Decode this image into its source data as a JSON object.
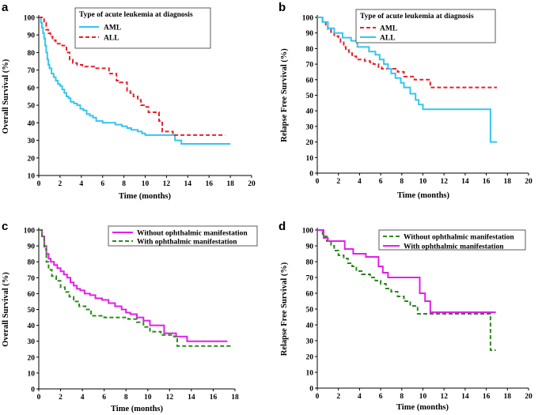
{
  "chart_data": [
    {
      "panel": "a",
      "type": "line",
      "xlabel": "Time (months)",
      "ylabel": "Overall Survival (%)",
      "xlim": [
        0,
        20
      ],
      "ylim": [
        10,
        100
      ],
      "xticks": [
        "0",
        "2",
        "4",
        "6",
        "8",
        "10",
        "12",
        "14",
        "16",
        "18",
        "20"
      ],
      "yticks": [
        "10",
        "20",
        "30",
        "40",
        "50",
        "60",
        "70",
        "80",
        "90",
        "100"
      ],
      "legend": {
        "title": "Type of acute leukemia at diagnosis",
        "position": "top-left"
      },
      "series": [
        {
          "name": "AML",
          "color": "#33c6ef",
          "dash": "solid",
          "x": [
            0,
            0.2,
            0.3,
            0.4,
            0.5,
            0.6,
            0.7,
            0.8,
            0.9,
            1.0,
            1.2,
            1.4,
            1.6,
            1.8,
            2.0,
            2.2,
            2.4,
            2.6,
            2.8,
            3.0,
            3.3,
            3.6,
            3.9,
            4.2,
            4.5,
            4.8,
            5.1,
            5.4,
            6.0,
            6.5,
            7.2,
            7.8,
            8.3,
            8.7,
            9.3,
            9.7,
            10.0,
            11.0,
            12.2,
            12.8,
            13.4,
            14.0,
            18.0
          ],
          "y": [
            100,
            97,
            94,
            91,
            88,
            84,
            80,
            76,
            73,
            71,
            68,
            66,
            64,
            62,
            61,
            59,
            57,
            55,
            54,
            52,
            51,
            50,
            48,
            47,
            45,
            44,
            43,
            41,
            40,
            40,
            39,
            38,
            37,
            36,
            35,
            34,
            33,
            33,
            33,
            30,
            28,
            28,
            28
          ]
        },
        {
          "name": "ALL",
          "color": "#e8222a",
          "dash": "dashed",
          "x": [
            0,
            0.5,
            0.7,
            0.9,
            1.1,
            1.3,
            1.6,
            2.2,
            2.6,
            2.9,
            3.2,
            3.6,
            4.1,
            4.6,
            5.2,
            5.6,
            6.3,
            6.6,
            7.3,
            7.6,
            8.3,
            8.6,
            8.9,
            9.3,
            9.6,
            10.0,
            10.3,
            10.8,
            11.3,
            11.6,
            12.6,
            17.5
          ],
          "y": [
            100,
            97,
            93,
            91,
            89,
            87,
            85,
            84,
            80,
            76,
            74,
            73,
            72,
            72,
            71,
            71,
            71,
            68,
            64,
            63,
            58,
            57,
            55,
            53,
            50,
            49,
            46,
            46,
            41,
            35,
            33,
            33
          ]
        }
      ]
    },
    {
      "panel": "b",
      "type": "line",
      "xlabel": "Time (months)",
      "ylabel": "Relapse Free Survival (%)",
      "xlim": [
        0,
        20
      ],
      "ylim": [
        0,
        100
      ],
      "xticks": [
        "0",
        "2",
        "4",
        "6",
        "8",
        "10",
        "12",
        "14",
        "16",
        "18",
        "20"
      ],
      "yticks": [
        "0",
        "10",
        "20",
        "30",
        "40",
        "50",
        "60",
        "70",
        "80",
        "90",
        "100"
      ],
      "legend": {
        "title": "Type of acute leukemia at diagnosis",
        "position": "top-right"
      },
      "series": [
        {
          "name": "AML",
          "color": "#e8222a",
          "dash": "dashed",
          "x": [
            0,
            0.5,
            0.8,
            1.0,
            1.3,
            1.6,
            2.0,
            2.2,
            2.5,
            2.7,
            3.0,
            3.3,
            3.7,
            4.5,
            5.0,
            5.3,
            5.8,
            6.1,
            6.8,
            7.6,
            8.2,
            9.2,
            10.0,
            10.7,
            17.0
          ],
          "y": [
            100,
            97,
            94,
            92,
            90,
            88,
            86,
            84,
            81,
            79,
            77,
            75,
            73,
            72,
            71,
            70,
            68,
            67,
            67,
            65,
            62,
            60,
            60,
            55,
            55
          ]
        },
        {
          "name": "ALL",
          "color": "#33c6ef",
          "dash": "solid",
          "x": [
            0,
            0.5,
            1.0,
            1.6,
            2.4,
            3.2,
            3.8,
            4.9,
            5.5,
            5.9,
            6.3,
            6.7,
            7.0,
            7.4,
            7.9,
            8.2,
            8.8,
            9.3,
            9.6,
            10.0,
            16.2,
            16.4,
            17.0
          ],
          "y": [
            100,
            97,
            93,
            90,
            87,
            85,
            81,
            78,
            76,
            73,
            70,
            67,
            64,
            61,
            58,
            55,
            51,
            47,
            44,
            41,
            41,
            20,
            20
          ]
        }
      ]
    },
    {
      "panel": "c",
      "type": "line",
      "xlabel": "Time (months)",
      "ylabel": "Overall Survival (%)",
      "xlim": [
        0,
        18
      ],
      "ylim": [
        0,
        100
      ],
      "xticks": [
        "0",
        "2",
        "4",
        "6",
        "8",
        "10",
        "12",
        "14",
        "16",
        "18"
      ],
      "yticks": [
        "0",
        "10",
        "20",
        "30",
        "40",
        "50",
        "60",
        "70",
        "80",
        "90",
        "100"
      ],
      "legend": {
        "position": "top-right"
      },
      "series": [
        {
          "name": "Without ophthalmic manifestation",
          "color": "#e020e8",
          "dash": "solid",
          "x": [
            0,
            0.3,
            0.5,
            0.7,
            0.9,
            1.1,
            1.4,
            1.7,
            2.0,
            2.3,
            2.6,
            2.9,
            3.2,
            3.5,
            3.8,
            4.2,
            4.7,
            5.2,
            5.8,
            6.4,
            7.0,
            7.6,
            8.0,
            8.4,
            9.0,
            9.6,
            10.2,
            11.2,
            11.5,
            12.6,
            13.6,
            17.3
          ],
          "y": [
            100,
            96,
            90,
            85,
            82,
            80,
            78,
            76,
            74,
            72,
            70,
            67,
            65,
            63,
            62,
            60,
            59,
            57,
            56,
            54,
            52,
            50,
            48,
            47,
            45,
            43,
            40,
            40,
            35,
            33,
            30,
            30
          ]
        },
        {
          "name": "With ophthalmic manifestation",
          "color": "#2a8a1e",
          "dash": "dashed",
          "x": [
            0,
            0.3,
            0.5,
            0.7,
            0.9,
            1.2,
            1.6,
            2.0,
            2.4,
            2.8,
            3.2,
            3.7,
            4.3,
            4.8,
            6.0,
            7.2,
            8.2,
            9.0,
            9.6,
            10.2,
            11.2,
            12.4,
            12.7,
            17.8
          ],
          "y": [
            100,
            95,
            88,
            80,
            75,
            71,
            68,
            64,
            61,
            58,
            55,
            52,
            50,
            46,
            45,
            45,
            44,
            42,
            39,
            36,
            34,
            33,
            27,
            27
          ]
        }
      ]
    },
    {
      "panel": "d",
      "type": "line",
      "xlabel": "Time (months)",
      "ylabel": "Relapse Free Survival (%)",
      "xlim": [
        0,
        20
      ],
      "ylim": [
        0,
        100
      ],
      "xticks": [
        "0",
        "2",
        "4",
        "6",
        "8",
        "10",
        "12",
        "14",
        "16",
        "18",
        "20"
      ],
      "yticks": [
        "0",
        "10",
        "20",
        "30",
        "40",
        "50",
        "60",
        "70",
        "80",
        "90",
        "100"
      ],
      "legend": {
        "position": "top-right"
      },
      "series": [
        {
          "name": "Without ophthalmic manifestation",
          "color": "#2a8a1e",
          "dash": "dashed",
          "x": [
            0,
            0.5,
            0.9,
            1.3,
            1.6,
            2.0,
            2.5,
            2.9,
            3.3,
            3.7,
            4.2,
            5.0,
            5.5,
            6.0,
            6.5,
            7.0,
            7.6,
            8.2,
            8.8,
            9.5,
            16.2,
            16.4,
            16.9
          ],
          "y": [
            100,
            96,
            93,
            90,
            87,
            84,
            82,
            79,
            77,
            74,
            72,
            70,
            68,
            66,
            63,
            61,
            58,
            55,
            52,
            47,
            47,
            24,
            24
          ]
        },
        {
          "name": "With ophthalmic manifestation",
          "color": "#e020e8",
          "dash": "solid",
          "x": [
            0,
            0.6,
            1.0,
            1.5,
            2.6,
            3.4,
            4.6,
            5.8,
            6.2,
            6.7,
            8.7,
            9.7,
            10.2,
            10.7,
            16.9
          ],
          "y": [
            100,
            95,
            93,
            93,
            88,
            85,
            83,
            77,
            73,
            70,
            70,
            60,
            55,
            48,
            48
          ]
        }
      ]
    }
  ]
}
